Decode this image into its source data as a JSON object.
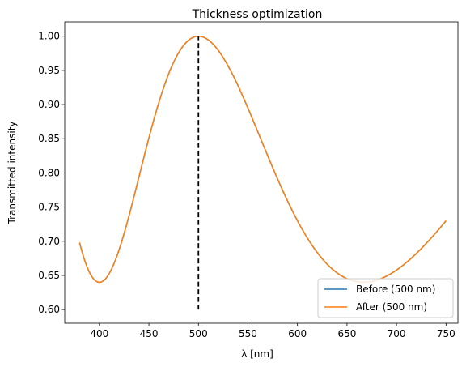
{
  "chart_data": {
    "type": "line",
    "title": "Thickness optimization",
    "xlabel": "λ [nm]",
    "ylabel": "Transmitted intensity",
    "xlim": [
      365,
      762
    ],
    "ylim": [
      0.58,
      1.021
    ],
    "xticks": [
      400,
      450,
      500,
      550,
      600,
      650,
      700,
      750
    ],
    "yticks": [
      0.6,
      0.65,
      0.7,
      0.75,
      0.8,
      0.85,
      0.9,
      0.95,
      1.0
    ],
    "grid": false,
    "legend_position": "lower-right",
    "model": {
      "description_printed": false,
      "x_range": [
        380,
        750
      ],
      "peak_wavelengths_nm": [
        400,
        500,
        667
      ],
      "min_value": 0.64
    },
    "series": [
      {
        "name": "Before (500 nm)",
        "color": "#1f77b4",
        "style": "solid"
      },
      {
        "name": "After (500 nm)",
        "color": "#ff7f0e",
        "style": "solid"
      }
    ],
    "reference_line": {
      "x": 500,
      "y_range": [
        0.6,
        1.0
      ],
      "color": "#000000",
      "style": "dashed"
    }
  }
}
